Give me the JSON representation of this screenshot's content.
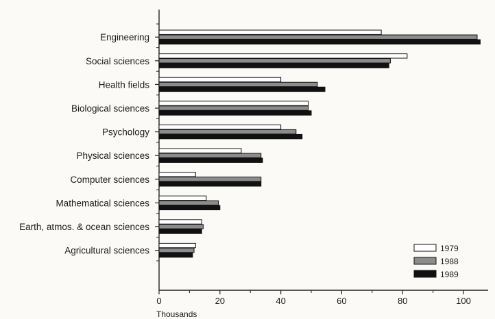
{
  "chart_data": {
    "type": "bar",
    "orientation": "horizontal",
    "categories": [
      "Engineering",
      "Social sciences",
      "Health fields",
      "Biological sciences",
      "Psychology",
      "Physical sciences",
      "Computer sciences",
      "Mathematical sciences",
      "Earth, atmos. & ocean sciences",
      "Agricultural sciences"
    ],
    "series": [
      {
        "name": "1979",
        "color": "#ffffff",
        "values": [
          73,
          81.5,
          40,
          49,
          40,
          27,
          12,
          15.5,
          14,
          12
        ]
      },
      {
        "name": "1988",
        "color": "#8c8c8c",
        "values": [
          104.5,
          76,
          52,
          49,
          45,
          33.5,
          33.5,
          19.5,
          14.5,
          11.5
        ]
      },
      {
        "name": "1989",
        "color": "#111111",
        "values": [
          105.5,
          75.5,
          54.5,
          50,
          47,
          34,
          33.5,
          20,
          14,
          11
        ]
      }
    ],
    "xlabel": "Thousands",
    "xlim": [
      0,
      106
    ],
    "xticks": [
      "0",
      "20",
      "40",
      "60",
      "80",
      "100"
    ],
    "legend_position": "bottom-right",
    "grid": false
  }
}
